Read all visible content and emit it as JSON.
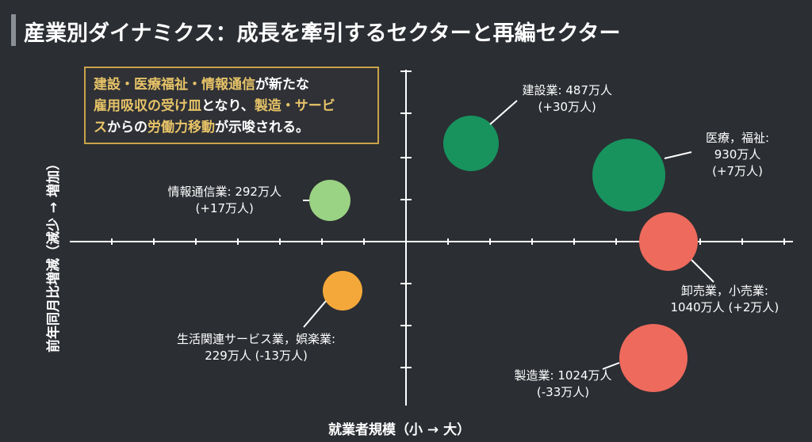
{
  "title": "産業別ダイナミクス：成長を牽引するセクターと再編セクター",
  "callout": {
    "parts": [
      {
        "text": "建設・医療福祉・情報通信",
        "hl": true
      },
      {
        "text": "が新たな",
        "hl": false
      },
      {
        "text": "\n",
        "hl": false
      },
      {
        "text": "雇用吸収の受け皿",
        "hl": true
      },
      {
        "text": "となり、",
        "hl": false
      },
      {
        "text": "製造・サービ",
        "hl": true
      },
      {
        "text": "\n",
        "hl": false
      },
      {
        "text": "ス",
        "hl": true
      },
      {
        "text": "からの",
        "hl": false
      },
      {
        "text": "労働力移動",
        "hl": true
      },
      {
        "text": "が示唆される。",
        "hl": false
      }
    ]
  },
  "chart_data": {
    "type": "scatter",
    "title": "産業別ダイナミクス：成長を牽引するセクターと再編セクター",
    "xlabel": "就業者規模（小 → 大）",
    "ylabel": "前年同月比増減（減少 → 増加）",
    "grid": false,
    "points": [
      {
        "label_lines": [
          "建設業: 487万人",
          "(+30万人)"
        ],
        "employment": 487,
        "change": 30,
        "color": "#18935e"
      },
      {
        "label_lines": [
          "医療，福祉:",
          "930万人",
          "(+7万人)"
        ],
        "employment": 930,
        "change": 7,
        "color": "#18935e"
      },
      {
        "label_lines": [
          "情報通信業: 292万人",
          "(+17万人)"
        ],
        "employment": 292,
        "change": 17,
        "color": "#9ad383"
      },
      {
        "label_lines": [
          "卸売業，小売業:",
          "1040万人 (+2万人)"
        ],
        "employment": 1040,
        "change": 2,
        "color": "#ee6a5c"
      },
      {
        "label_lines": [
          "生活関連サービス業，娯楽業:",
          "229万人 (-13万人)"
        ],
        "employment": 229,
        "change": -13,
        "color": "#f4a83a"
      },
      {
        "label_lines": [
          "製造業: 1024万人",
          "(-33万人)"
        ],
        "employment": 1024,
        "change": -33,
        "color": "#ee6a5c"
      }
    ]
  }
}
